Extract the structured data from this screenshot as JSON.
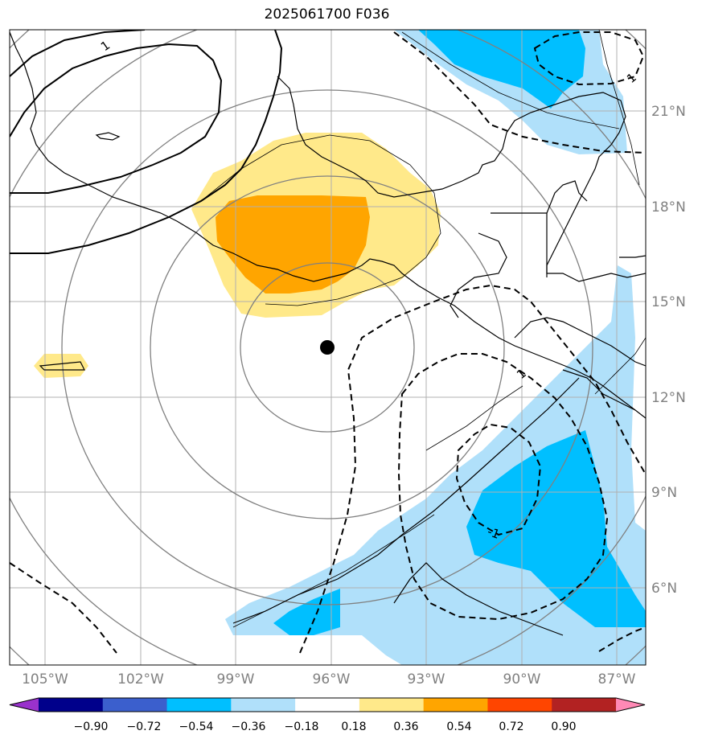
{
  "title": "2025061700 F036",
  "map": {
    "projection": "lat-lon",
    "lon_range": [
      -106.5,
      -85.5
    ],
    "lat_range": [
      3.5,
      23.5
    ],
    "storm_center": {
      "lon": -96.0,
      "lat": 13.5,
      "marker": "black-dot"
    },
    "lon_ticks": [
      {
        "value": -105,
        "label": "105°W"
      },
      {
        "value": -102,
        "label": "102°W"
      },
      {
        "value": -99,
        "label": "99°W"
      },
      {
        "value": -96,
        "label": "96°W"
      },
      {
        "value": -93,
        "label": "93°W"
      },
      {
        "value": -90,
        "label": "90°W"
      },
      {
        "value": -87,
        "label": "87°W"
      }
    ],
    "lat_ticks": [
      {
        "value": 21,
        "label": "21°N"
      },
      {
        "value": 18,
        "label": "18°N"
      },
      {
        "value": 15,
        "label": "15°N"
      },
      {
        "value": 12,
        "label": "12°N"
      },
      {
        "value": 9,
        "label": "9°N"
      },
      {
        "value": 6,
        "label": "6°N"
      }
    ],
    "range_rings": "concentric gray circles around storm center",
    "contour_labels": [
      "1",
      "1",
      "1",
      "-1",
      "-1",
      "-1"
    ]
  },
  "colorbar": {
    "extend": "both",
    "colors": [
      "#9932CC",
      "#00008B",
      "#3B5FCD",
      "#00BFFF",
      "#B0E0FA",
      "#FFFFFF",
      "#FFE98A",
      "#FFA500",
      "#FF4500",
      "#B22222",
      "#FF89B5"
    ],
    "tick_labels": [
      "−0.90",
      "−0.72",
      "−0.54",
      "−0.36",
      "−0.18",
      "0.18",
      "0.36",
      "0.54",
      "0.72",
      "0.90"
    ]
  },
  "fill_colors": {
    "light_blue": "#B0E0FA",
    "blue": "#00BFFF",
    "light_yellow": "#FFE98A",
    "orange": "#FFA500"
  }
}
